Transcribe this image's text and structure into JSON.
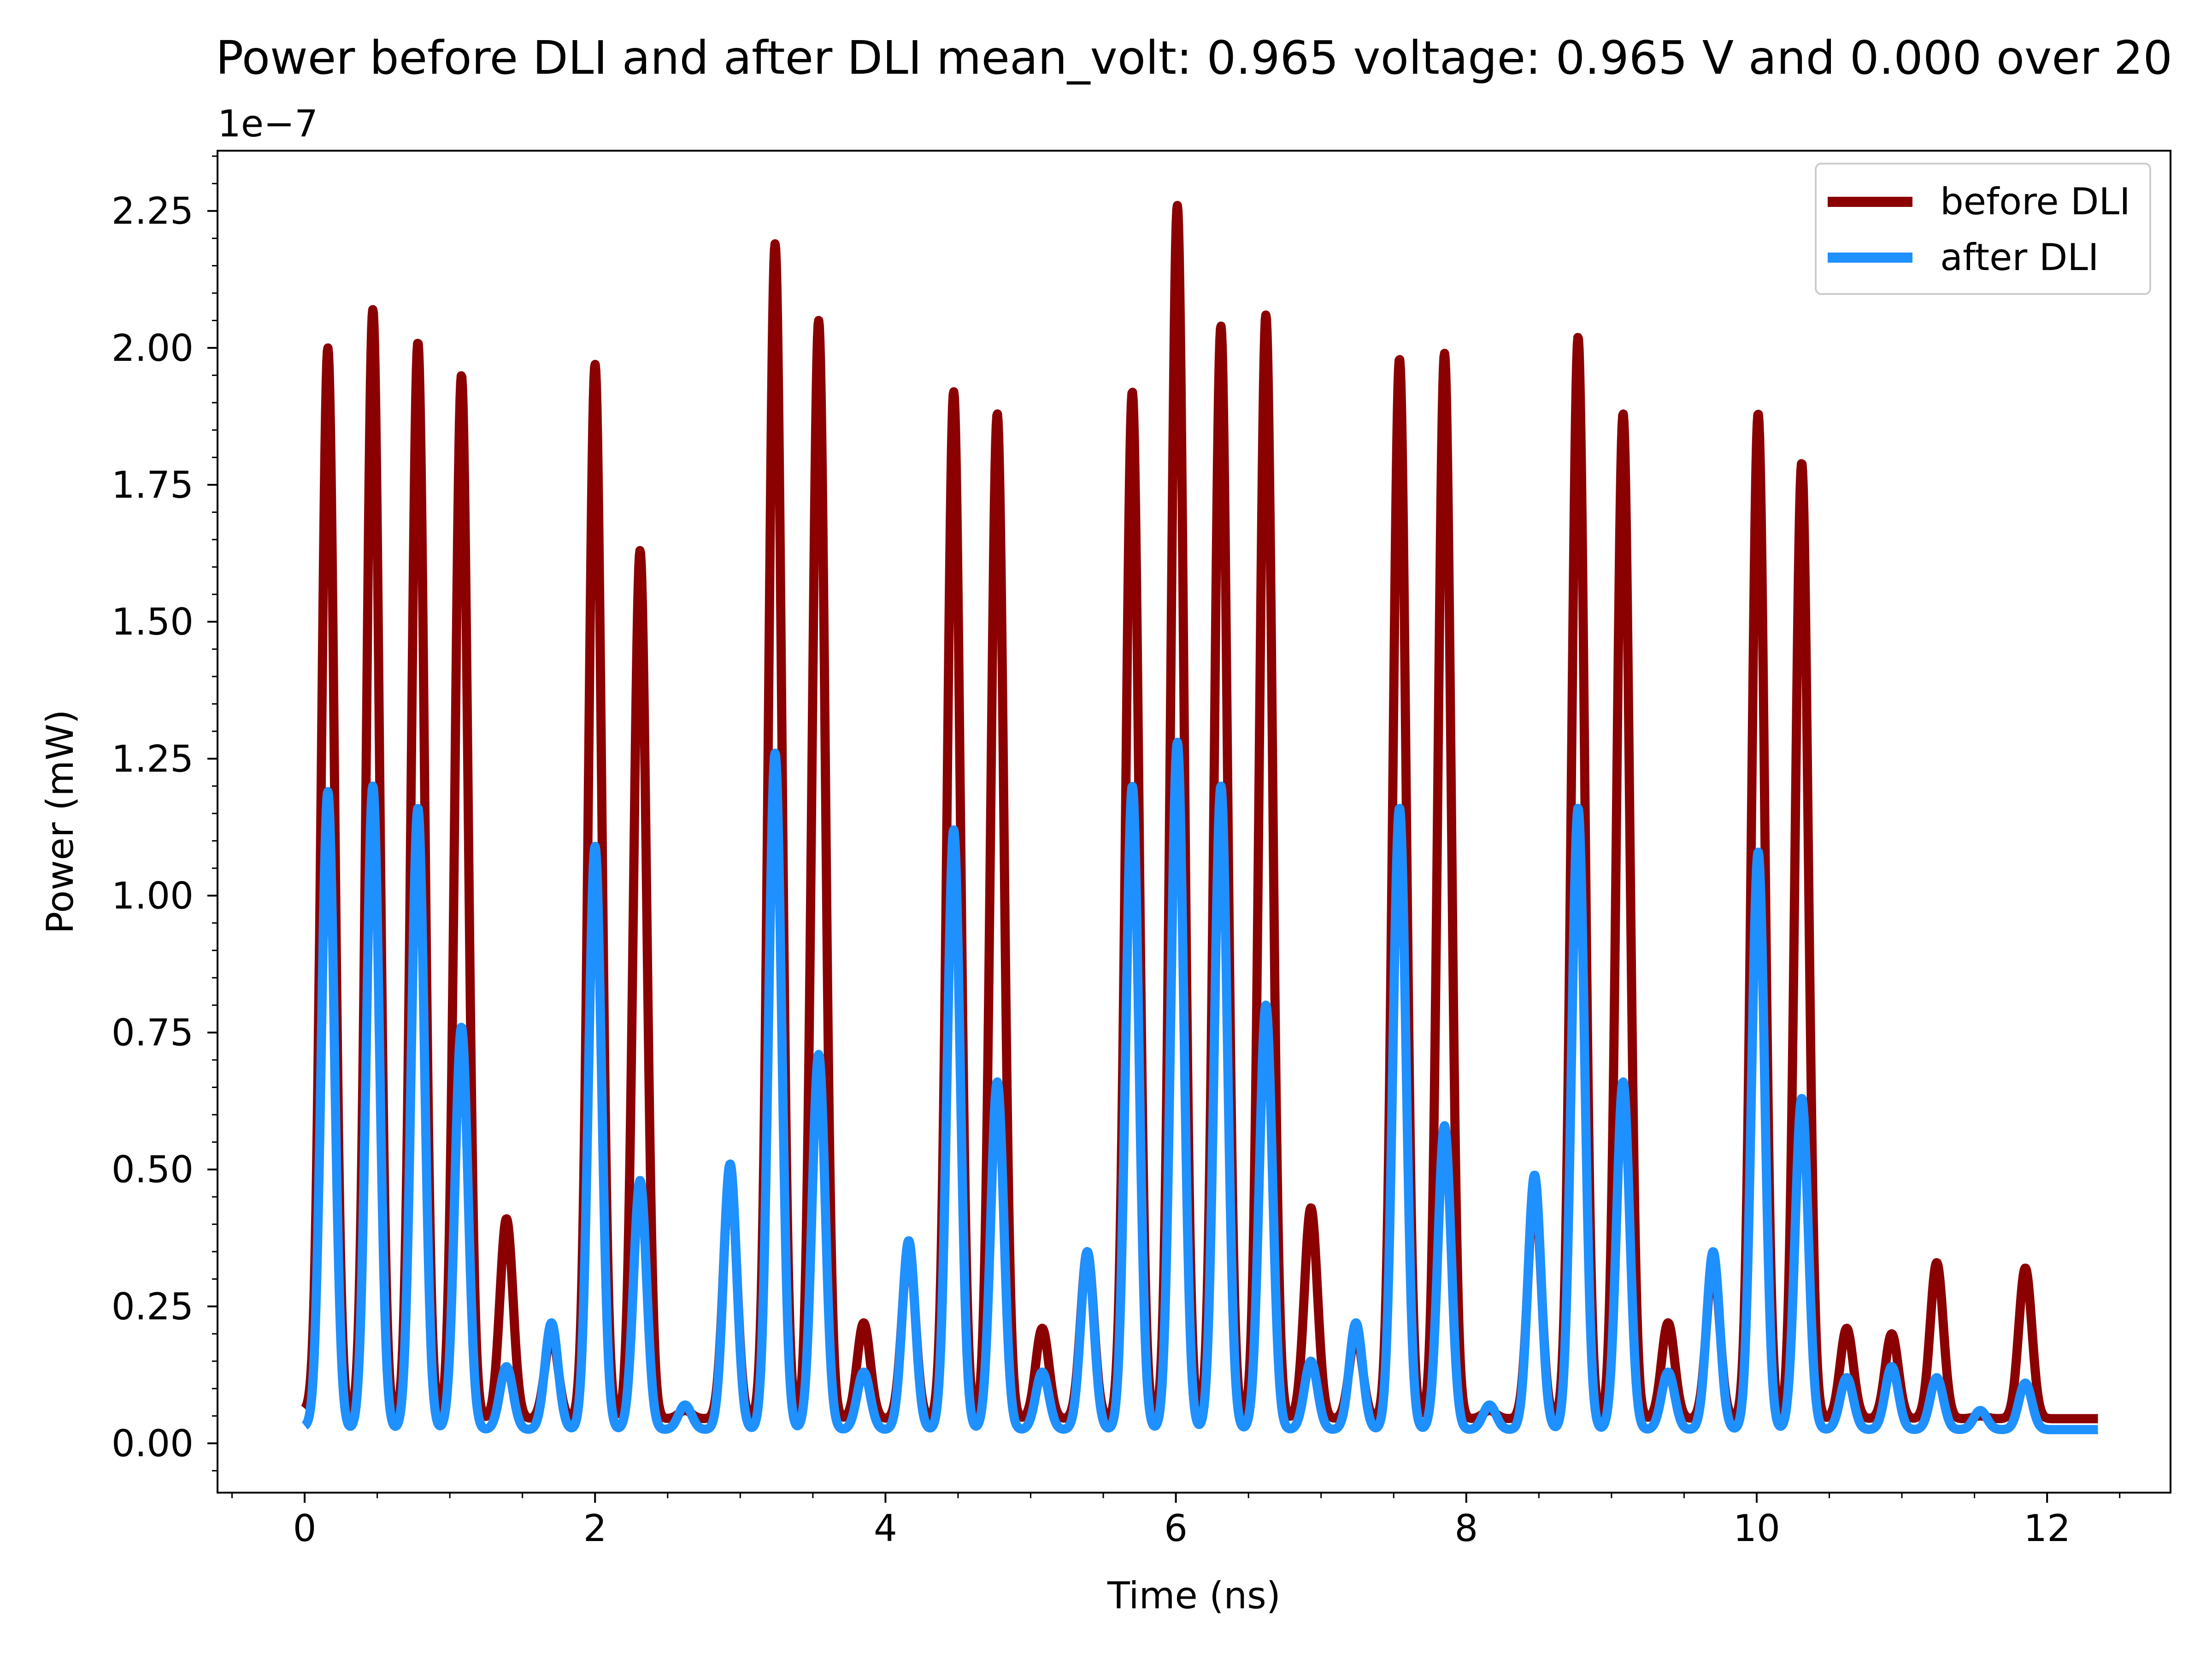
{
  "chart_data": {
    "type": "line",
    "title": "Power before DLI and after DLI  mean_volt: 0.965 voltage: 0.965 V and 0.000 over 20",
    "xlabel": "Time (ns)",
    "ylabel": "Power (mW)",
    "y_offset_label": "1e−7",
    "xlim": [
      -0.6,
      12.85
    ],
    "ylim": [
      -0.09,
      2.36
    ],
    "xticks": [
      0,
      2,
      4,
      6,
      8,
      10,
      12
    ],
    "yticks": [
      0.0,
      0.25,
      0.5,
      0.75,
      1.0,
      1.25,
      1.5,
      1.75,
      2.0,
      2.25
    ],
    "xtick_labels": [
      "0",
      "2",
      "4",
      "6",
      "8",
      "10",
      "12"
    ],
    "ytick_labels": [
      "0.00",
      "0.25",
      "0.50",
      "0.75",
      "1.00",
      "1.25",
      "1.50",
      "1.75",
      "2.00",
      "2.25"
    ],
    "grid": false,
    "legend_position": "top-right",
    "time_range": [
      0,
      12.35
    ],
    "series": [
      {
        "name": "before DLI",
        "color": "#8b0000",
        "baseline_start": 0.06,
        "baseline": 0.045,
        "peaks": [
          {
            "t": 0.16,
            "v": 2.0
          },
          {
            "t": 0.47,
            "v": 2.07
          },
          {
            "t": 0.78,
            "v": 2.01
          },
          {
            "t": 1.08,
            "v": 1.95
          },
          {
            "t": 1.39,
            "v": 0.41
          },
          {
            "t": 1.7,
            "v": 0.2
          },
          {
            "t": 2.0,
            "v": 1.97
          },
          {
            "t": 2.31,
            "v": 1.63
          },
          {
            "t": 2.62,
            "v": 0.06
          },
          {
            "t": 2.93,
            "v": 0.5
          },
          {
            "t": 3.24,
            "v": 2.19
          },
          {
            "t": 3.54,
            "v": 2.05
          },
          {
            "t": 3.85,
            "v": 0.22
          },
          {
            "t": 4.16,
            "v": 0.36
          },
          {
            "t": 4.47,
            "v": 1.92
          },
          {
            "t": 4.77,
            "v": 1.88
          },
          {
            "t": 5.08,
            "v": 0.21
          },
          {
            "t": 5.39,
            "v": 0.35
          },
          {
            "t": 5.7,
            "v": 1.92
          },
          {
            "t": 6.01,
            "v": 2.26
          },
          {
            "t": 6.31,
            "v": 2.04
          },
          {
            "t": 6.62,
            "v": 2.06
          },
          {
            "t": 6.93,
            "v": 0.43
          },
          {
            "t": 7.24,
            "v": 0.2
          },
          {
            "t": 7.54,
            "v": 1.98
          },
          {
            "t": 7.85,
            "v": 1.99
          },
          {
            "t": 8.16,
            "v": 0.06
          },
          {
            "t": 8.47,
            "v": 0.47
          },
          {
            "t": 8.77,
            "v": 2.02
          },
          {
            "t": 9.08,
            "v": 1.88
          },
          {
            "t": 9.39,
            "v": 0.22
          },
          {
            "t": 9.7,
            "v": 0.33
          },
          {
            "t": 10.01,
            "v": 1.88
          },
          {
            "t": 10.31,
            "v": 1.79
          },
          {
            "t": 10.62,
            "v": 0.21
          },
          {
            "t": 10.93,
            "v": 0.2
          },
          {
            "t": 11.24,
            "v": 0.33
          },
          {
            "t": 11.54,
            "v": 0.05
          },
          {
            "t": 11.85,
            "v": 0.32
          }
        ]
      },
      {
        "name": "after DLI",
        "color": "#1e90ff",
        "baseline_start": 0.03,
        "baseline": 0.025,
        "peaks": [
          {
            "t": 0.16,
            "v": 1.19
          },
          {
            "t": 0.47,
            "v": 1.2
          },
          {
            "t": 0.78,
            "v": 1.16
          },
          {
            "t": 1.08,
            "v": 0.76
          },
          {
            "t": 1.39,
            "v": 0.14
          },
          {
            "t": 1.7,
            "v": 0.22
          },
          {
            "t": 2.0,
            "v": 1.09
          },
          {
            "t": 2.31,
            "v": 0.48
          },
          {
            "t": 2.62,
            "v": 0.07
          },
          {
            "t": 2.93,
            "v": 0.51
          },
          {
            "t": 3.24,
            "v": 1.26
          },
          {
            "t": 3.54,
            "v": 0.71
          },
          {
            "t": 3.85,
            "v": 0.13
          },
          {
            "t": 4.16,
            "v": 0.37
          },
          {
            "t": 4.47,
            "v": 1.12
          },
          {
            "t": 4.77,
            "v": 0.66
          },
          {
            "t": 5.08,
            "v": 0.13
          },
          {
            "t": 5.39,
            "v": 0.35
          },
          {
            "t": 5.7,
            "v": 1.2
          },
          {
            "t": 6.01,
            "v": 1.28
          },
          {
            "t": 6.31,
            "v": 1.2
          },
          {
            "t": 6.62,
            "v": 0.8
          },
          {
            "t": 6.93,
            "v": 0.15
          },
          {
            "t": 7.24,
            "v": 0.22
          },
          {
            "t": 7.54,
            "v": 1.16
          },
          {
            "t": 7.85,
            "v": 0.58
          },
          {
            "t": 8.16,
            "v": 0.07
          },
          {
            "t": 8.47,
            "v": 0.49
          },
          {
            "t": 8.77,
            "v": 1.16
          },
          {
            "t": 9.08,
            "v": 0.66
          },
          {
            "t": 9.39,
            "v": 0.13
          },
          {
            "t": 9.7,
            "v": 0.35
          },
          {
            "t": 10.01,
            "v": 1.08
          },
          {
            "t": 10.31,
            "v": 0.63
          },
          {
            "t": 10.62,
            "v": 0.12
          },
          {
            "t": 10.93,
            "v": 0.14
          },
          {
            "t": 11.24,
            "v": 0.12
          },
          {
            "t": 11.54,
            "v": 0.06
          },
          {
            "t": 11.85,
            "v": 0.11
          }
        ]
      }
    ]
  }
}
